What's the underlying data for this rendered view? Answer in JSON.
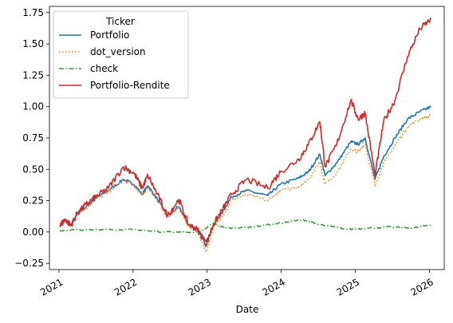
{
  "chart_data": {
    "type": "line",
    "xlabel": "Date",
    "ylabel": "",
    "legend": {
      "title": "Ticker",
      "placement": "upper-left"
    },
    "x_ticks": [
      "2021",
      "2022",
      "2023",
      "2024",
      "2025",
      "2026"
    ],
    "y_ticks": [
      "−0.25",
      "0.00",
      "0.25",
      "0.50",
      "0.75",
      "1.00",
      "1.25",
      "1.50",
      "1.75"
    ],
    "xlim": [
      "2020-11-15",
      "2026-03-15"
    ],
    "ylim": [
      -0.3,
      1.8
    ],
    "grid": false,
    "series": [
      {
        "name": "Portfolio",
        "color": "#1f77b4",
        "style": "solid",
        "points": [
          [
            "2021-01-05",
            0.05
          ],
          [
            "2021-02-01",
            0.1
          ],
          [
            "2021-03-01",
            0.05
          ],
          [
            "2021-04-01",
            0.15
          ],
          [
            "2021-05-15",
            0.2
          ],
          [
            "2021-07-01",
            0.27
          ],
          [
            "2021-09-01",
            0.33
          ],
          [
            "2021-11-15",
            0.42
          ],
          [
            "2022-01-05",
            0.38
          ],
          [
            "2022-02-15",
            0.3
          ],
          [
            "2022-03-15",
            0.37
          ],
          [
            "2022-05-01",
            0.26
          ],
          [
            "2022-06-20",
            0.13
          ],
          [
            "2022-08-15",
            0.2
          ],
          [
            "2022-10-01",
            0.06
          ],
          [
            "2022-11-15",
            0.02
          ],
          [
            "2022-12-28",
            -0.08
          ],
          [
            "2023-02-01",
            0.06
          ],
          [
            "2023-03-15",
            0.15
          ],
          [
            "2023-05-01",
            0.28
          ],
          [
            "2023-07-15",
            0.33
          ],
          [
            "2023-10-27",
            0.29
          ],
          [
            "2023-12-29",
            0.38
          ],
          [
            "2024-03-28",
            0.43
          ],
          [
            "2024-05-15",
            0.48
          ],
          [
            "2024-07-10",
            0.62
          ],
          [
            "2024-08-05",
            0.45
          ],
          [
            "2024-10-01",
            0.55
          ],
          [
            "2024-12-10",
            0.72
          ],
          [
            "2025-01-15",
            0.7
          ],
          [
            "2025-02-18",
            0.75
          ],
          [
            "2025-04-08",
            0.42
          ],
          [
            "2025-05-20",
            0.6
          ],
          [
            "2025-07-15",
            0.75
          ],
          [
            "2025-09-15",
            0.9
          ],
          [
            "2025-11-15",
            0.96
          ],
          [
            "2026-01-10",
            1.0
          ]
        ]
      },
      {
        "name": "dot_version",
        "color": "#ff7f0e",
        "style": "dotted",
        "points": [
          [
            "2021-01-05",
            0.04
          ],
          [
            "2021-02-01",
            0.09
          ],
          [
            "2021-03-01",
            0.04
          ],
          [
            "2021-04-01",
            0.14
          ],
          [
            "2021-05-15",
            0.19
          ],
          [
            "2021-07-01",
            0.26
          ],
          [
            "2021-09-01",
            0.32
          ],
          [
            "2021-11-15",
            0.41
          ],
          [
            "2022-01-05",
            0.37
          ],
          [
            "2022-02-15",
            0.29
          ],
          [
            "2022-03-15",
            0.36
          ],
          [
            "2022-05-01",
            0.25
          ],
          [
            "2022-06-20",
            0.12
          ],
          [
            "2022-08-15",
            0.19
          ],
          [
            "2022-10-01",
            0.04
          ],
          [
            "2022-11-15",
            0.0
          ],
          [
            "2022-12-28",
            -0.16
          ],
          [
            "2023-02-01",
            0.04
          ],
          [
            "2023-03-15",
            0.12
          ],
          [
            "2023-05-01",
            0.25
          ],
          [
            "2023-07-15",
            0.3
          ],
          [
            "2023-10-27",
            0.25
          ],
          [
            "2023-12-29",
            0.33
          ],
          [
            "2024-03-28",
            0.36
          ],
          [
            "2024-05-15",
            0.42
          ],
          [
            "2024-07-10",
            0.56
          ],
          [
            "2024-08-05",
            0.38
          ],
          [
            "2024-10-01",
            0.47
          ],
          [
            "2024-12-10",
            0.66
          ],
          [
            "2025-01-15",
            0.64
          ],
          [
            "2025-02-18",
            0.7
          ],
          [
            "2025-04-08",
            0.37
          ],
          [
            "2025-05-20",
            0.55
          ],
          [
            "2025-07-15",
            0.69
          ],
          [
            "2025-09-15",
            0.84
          ],
          [
            "2025-11-15",
            0.9
          ],
          [
            "2026-01-10",
            0.93
          ]
        ]
      },
      {
        "name": "check",
        "color": "#2ca02c",
        "style": "dashdot",
        "points": [
          [
            "2021-01-05",
            0.01
          ],
          [
            "2021-06-01",
            0.02
          ],
          [
            "2022-01-01",
            0.02
          ],
          [
            "2022-06-01",
            0.0
          ],
          [
            "2022-12-01",
            0.0
          ],
          [
            "2023-02-01",
            0.07
          ],
          [
            "2023-04-01",
            0.03
          ],
          [
            "2023-08-01",
            0.04
          ],
          [
            "2024-01-01",
            0.07
          ],
          [
            "2024-04-15",
            0.1
          ],
          [
            "2024-07-01",
            0.06
          ],
          [
            "2024-12-01",
            0.02
          ],
          [
            "2025-03-01",
            0.03
          ],
          [
            "2025-07-01",
            0.04
          ],
          [
            "2025-10-15",
            0.03
          ],
          [
            "2026-01-10",
            0.06
          ]
        ]
      },
      {
        "name": "Portfolio-Rendite",
        "color": "#d62728",
        "style": "solid",
        "points": [
          [
            "2021-01-05",
            0.05
          ],
          [
            "2021-02-01",
            0.1
          ],
          [
            "2021-03-01",
            0.05
          ],
          [
            "2021-04-01",
            0.15
          ],
          [
            "2021-05-15",
            0.22
          ],
          [
            "2021-07-01",
            0.28
          ],
          [
            "2021-09-01",
            0.35
          ],
          [
            "2021-11-15",
            0.52
          ],
          [
            "2022-01-05",
            0.47
          ],
          [
            "2022-02-15",
            0.35
          ],
          [
            "2022-03-15",
            0.45
          ],
          [
            "2022-05-01",
            0.3
          ],
          [
            "2022-06-20",
            0.13
          ],
          [
            "2022-08-15",
            0.26
          ],
          [
            "2022-10-01",
            0.06
          ],
          [
            "2022-11-15",
            0.02
          ],
          [
            "2022-12-28",
            -0.1
          ],
          [
            "2023-02-01",
            0.06
          ],
          [
            "2023-03-15",
            0.17
          ],
          [
            "2023-05-01",
            0.3
          ],
          [
            "2023-07-15",
            0.42
          ],
          [
            "2023-10-27",
            0.35
          ],
          [
            "2023-12-29",
            0.48
          ],
          [
            "2024-03-28",
            0.58
          ],
          [
            "2024-05-15",
            0.7
          ],
          [
            "2024-07-10",
            0.88
          ],
          [
            "2024-08-05",
            0.52
          ],
          [
            "2024-10-01",
            0.7
          ],
          [
            "2024-12-10",
            1.05
          ],
          [
            "2025-01-15",
            0.9
          ],
          [
            "2025-02-18",
            0.95
          ],
          [
            "2025-04-08",
            0.45
          ],
          [
            "2025-05-20",
            0.88
          ],
          [
            "2025-07-15",
            1.05
          ],
          [
            "2025-09-15",
            1.4
          ],
          [
            "2025-11-15",
            1.62
          ],
          [
            "2026-01-10",
            1.7
          ]
        ]
      }
    ]
  }
}
